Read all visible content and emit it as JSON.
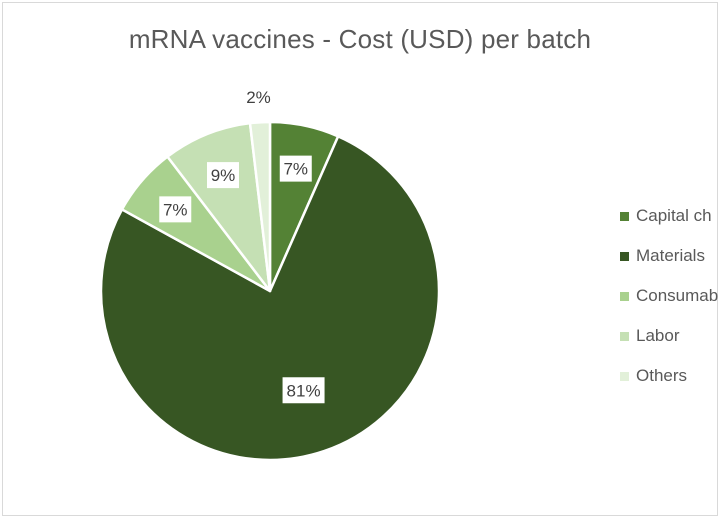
{
  "chart_data": {
    "type": "pie",
    "title": "mRNA vaccines - Cost (USD) per batch",
    "categories": [
      "Capital charges",
      "Materials",
      "Consumables",
      "Labor",
      "Others"
    ],
    "values": [
      7,
      81,
      7,
      9,
      2
    ],
    "data_labels": [
      "7%",
      "81%",
      "7%",
      "9%",
      "2%"
    ],
    "colors": [
      "#548235",
      "#375623",
      "#a9d18e",
      "#c5e0b4",
      "#e2f0d9"
    ],
    "legend_labels": [
      "Capital ch",
      "Materials",
      "Consumab",
      "Labor",
      "Others"
    ],
    "legend_position": "right",
    "start_angle_deg": 0,
    "direction": "clockwise"
  }
}
